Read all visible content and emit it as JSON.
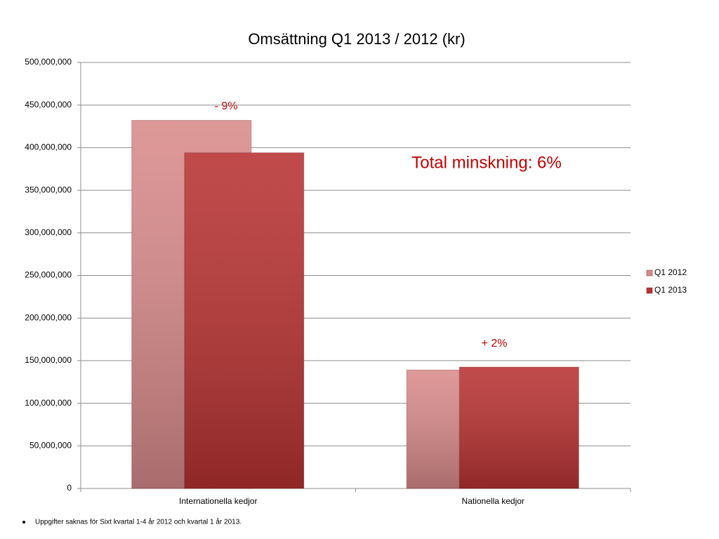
{
  "chart_data": {
    "type": "bar",
    "title": "Omsättning Q1 2013 / 2012 (kr)",
    "categories": [
      "Internationella kedjor",
      "Nationella kedjor"
    ],
    "series": [
      {
        "name": "Q1 2012",
        "color": "#d98a8a",
        "values": [
          432000000,
          139000000
        ]
      },
      {
        "name": "Q1 2013",
        "color": "#b83232",
        "values": [
          394000000,
          142500000
        ]
      }
    ],
    "ylim": [
      0,
      500000000
    ],
    "yticks": [
      0,
      {
        "value": 50000000,
        "label": "50,000,000"
      },
      {
        "value": 100000000,
        "label": "100,000,000"
      },
      {
        "value": 150000000,
        "label": "150,000,000"
      },
      {
        "value": 200000000,
        "label": "200,000,000"
      },
      {
        "value": 250000000,
        "label": "250,000,000"
      },
      {
        "value": 300000000,
        "label": "300,000,000"
      },
      {
        "value": 350000000,
        "label": "350,000,000"
      },
      {
        "value": 400000000,
        "label": "400,000,000"
      },
      {
        "value": 450000000,
        "label": "450,000,000"
      },
      {
        "value": 500000000,
        "label": "500,000,000"
      }
    ],
    "grid": true,
    "legend": "right",
    "annotations": [
      "- 9%",
      "+ 2%",
      "Total minskning: 6%"
    ],
    "footnote": "Uppgifter saknas för Sixt kvartal 1-4 år 2012 och kvartal 1 år 2013."
  }
}
